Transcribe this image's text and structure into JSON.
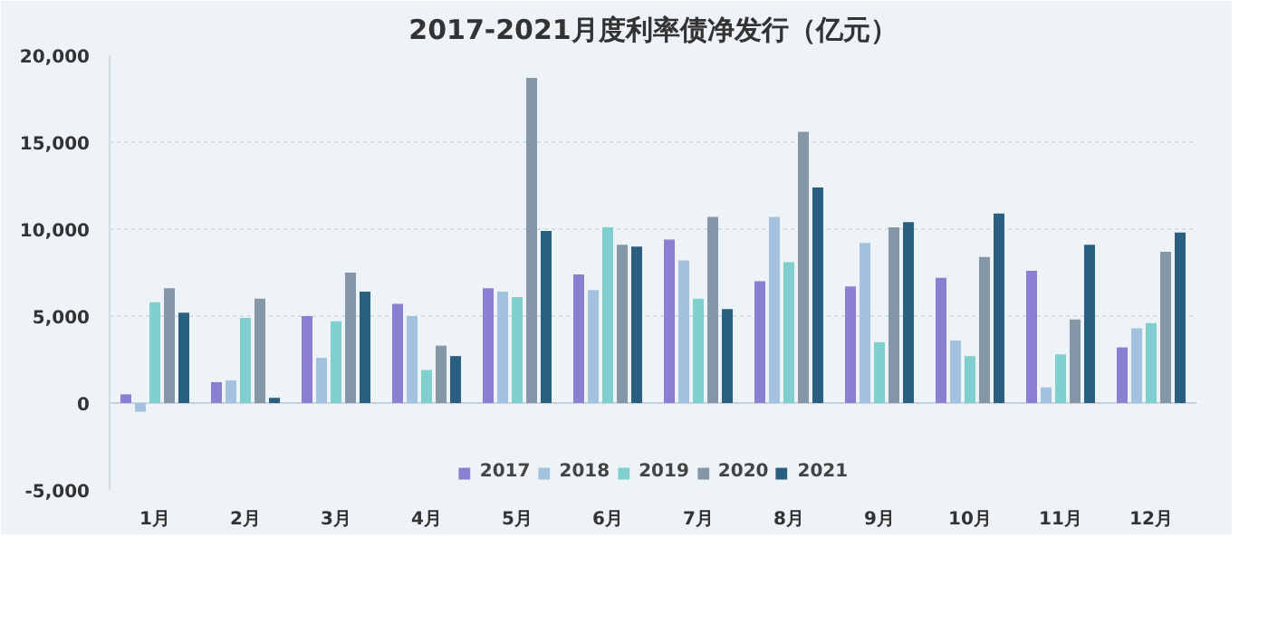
{
  "chart_data": {
    "type": "bar",
    "title": "2017-2021月度利率债净发行（亿元）",
    "categories": [
      "1月",
      "2月",
      "3月",
      "4月",
      "5月",
      "6月",
      "7月",
      "8月",
      "9月",
      "10月",
      "11月",
      "12月"
    ],
    "series": [
      {
        "name": "2017",
        "color": "#8a7fd0",
        "values": [
          500,
          1200,
          5000,
          5700,
          6600,
          7400,
          9400,
          7000,
          6700,
          7200,
          7600,
          3200
        ]
      },
      {
        "name": "2018",
        "color": "#a3c2e0",
        "values": [
          -500,
          1300,
          2600,
          5000,
          6400,
          6500,
          8200,
          10700,
          9200,
          3600,
          900,
          4300
        ]
      },
      {
        "name": "2019",
        "color": "#7fcfcf",
        "values": [
          5800,
          4900,
          4700,
          1900,
          6100,
          10100,
          6000,
          8100,
          3500,
          2700,
          2800,
          4600
        ]
      },
      {
        "name": "2020",
        "color": "#8497a8",
        "values": [
          6600,
          6000,
          7500,
          3300,
          18700,
          9100,
          10700,
          15600,
          10100,
          8400,
          4800,
          8700
        ]
      },
      {
        "name": "2021",
        "color": "#2b5f82",
        "values": [
          5200,
          300,
          6400,
          2700,
          9900,
          9000,
          5400,
          12400,
          10400,
          10900,
          9100,
          9800
        ]
      }
    ],
    "ylim": [
      -5000,
      20000
    ],
    "yticks": [
      {
        "value": -5000,
        "label": "-5,000"
      },
      {
        "value": 0,
        "label": "0"
      },
      {
        "value": 5000,
        "label": "5,000"
      },
      {
        "value": 10000,
        "label": "10,000"
      },
      {
        "value": 15000,
        "label": "15,000"
      },
      {
        "value": 20000,
        "label": "20,000"
      }
    ],
    "grid": "y",
    "legend": "bottom"
  }
}
